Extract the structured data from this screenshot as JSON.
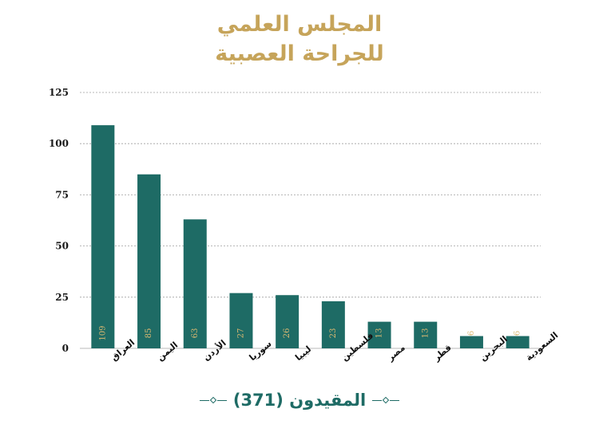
{
  "title": {
    "line1": "المجلس العلمي",
    "line2": "للجراحة العصبية"
  },
  "colors": {
    "bar": "#1e6b65",
    "value_label": "#d9b871",
    "title": "#c6a45a",
    "grid": "#a0a0a0"
  },
  "footer": {
    "text": "المقيدون (371)",
    "left_icon": "diamond-ornament-icon",
    "right_icon": "diamond-ornament-icon"
  },
  "chart_data": {
    "type": "bar",
    "title": "",
    "xlabel": "",
    "ylabel": "",
    "categories": [
      "العراق",
      "اليمن",
      "الأردن",
      "سوريا",
      "ليبيا",
      "فلسطين",
      "مصر",
      "قطر",
      "البحرين",
      "السعودية"
    ],
    "values": [
      109,
      85,
      63,
      27,
      26,
      23,
      13,
      13,
      6,
      6
    ],
    "ylim": [
      0,
      125
    ],
    "yticks": [
      0,
      25,
      50,
      75,
      100,
      125
    ],
    "grid": true,
    "legend": "none",
    "data_labels": true
  }
}
